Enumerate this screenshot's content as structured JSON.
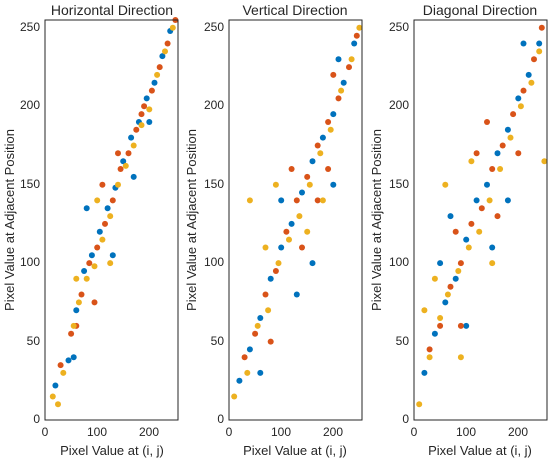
{
  "chart_data": [
    {
      "type": "scatter",
      "title": "Horizontal Direction",
      "xlabel": "Pixel Value at (i, j)",
      "ylabel": "Pixel Value at Adjacent Position",
      "xlim": [
        0,
        255
      ],
      "ylim": [
        0,
        255
      ],
      "xticks": [
        "0",
        "100",
        "200"
      ],
      "yticks": [
        "0",
        "50",
        "100",
        "150",
        "200",
        "250"
      ],
      "grid": false,
      "series_colors": [
        "#0072BD",
        "#D95319",
        "#EDB120"
      ],
      "series": [
        {
          "values": [
            [
              20,
              22
            ],
            [
              45,
              38
            ],
            [
              60,
              70
            ],
            [
              75,
              95
            ],
            [
              90,
              105
            ],
            [
              105,
              120
            ],
            [
              120,
              135
            ],
            [
              135,
              148
            ],
            [
              150,
              165
            ],
            [
              165,
              180
            ],
            [
              180,
              190
            ],
            [
              195,
              205
            ],
            [
              210,
              215
            ],
            [
              225,
              232
            ],
            [
              240,
              248
            ],
            [
              80,
              135
            ],
            [
              130,
              105
            ],
            [
              170,
              155
            ],
            [
              200,
              190
            ],
            [
              55,
              40
            ]
          ]
        },
        {
          "values": [
            [
              30,
              35
            ],
            [
              50,
              55
            ],
            [
              70,
              80
            ],
            [
              85,
              100
            ],
            [
              100,
              110
            ],
            [
              115,
              125
            ],
            [
              130,
              140
            ],
            [
              145,
              160
            ],
            [
              160,
              170
            ],
            [
              175,
              185
            ],
            [
              190,
              200
            ],
            [
              205,
              210
            ],
            [
              220,
              225
            ],
            [
              235,
              240
            ],
            [
              250,
              255
            ],
            [
              95,
              75
            ],
            [
              140,
              170
            ],
            [
              185,
              195
            ],
            [
              60,
              60
            ],
            [
              110,
              150
            ]
          ]
        },
        {
          "values": [
            [
              15,
              15
            ],
            [
              35,
              30
            ],
            [
              55,
              60
            ],
            [
              65,
              75
            ],
            [
              80,
              90
            ],
            [
              95,
              98
            ],
            [
              110,
              115
            ],
            [
              125,
              130
            ],
            [
              140,
              150
            ],
            [
              155,
              162
            ],
            [
              170,
              175
            ],
            [
              185,
              188
            ],
            [
              200,
              198
            ],
            [
              215,
              220
            ],
            [
              230,
              235
            ],
            [
              245,
              250
            ],
            [
              100,
              140
            ],
            [
              60,
              90
            ],
            [
              125,
              100
            ],
            [
              25,
              10
            ]
          ]
        }
      ]
    },
    {
      "type": "scatter",
      "title": "Vertical Direction",
      "xlabel": "Pixel Value at (i, j)",
      "ylabel": "Pixel Value at Adjacent Position",
      "xlim": [
        0,
        255
      ],
      "ylim": [
        0,
        255
      ],
      "xticks": [
        "0",
        "100",
        "200"
      ],
      "yticks": [
        "0",
        "50",
        "100",
        "150",
        "200",
        "250"
      ],
      "grid": false,
      "series_colors": [
        "#0072BD",
        "#D95319",
        "#EDB120"
      ],
      "series": [
        {
          "values": [
            [
              20,
              25
            ],
            [
              40,
              45
            ],
            [
              60,
              65
            ],
            [
              80,
              90
            ],
            [
              100,
              110
            ],
            [
              120,
              125
            ],
            [
              140,
              145
            ],
            [
              160,
              165
            ],
            [
              180,
              180
            ],
            [
              200,
              195
            ],
            [
              220,
              215
            ],
            [
              240,
              240
            ],
            [
              160,
              100
            ],
            [
              200,
              150
            ],
            [
              100,
              140
            ],
            [
              130,
              80
            ],
            [
              210,
              230
            ],
            [
              60,
              30
            ]
          ]
        },
        {
          "values": [
            [
              30,
              40
            ],
            [
              50,
              55
            ],
            [
              70,
              80
            ],
            [
              90,
              95
            ],
            [
              110,
              120
            ],
            [
              130,
              140
            ],
            [
              150,
              155
            ],
            [
              170,
              175
            ],
            [
              190,
              190
            ],
            [
              210,
              205
            ],
            [
              230,
              225
            ],
            [
              245,
              245
            ],
            [
              120,
              160
            ],
            [
              170,
              140
            ],
            [
              80,
              50
            ],
            [
              140,
              110
            ],
            [
              200,
              220
            ],
            [
              190,
              160
            ]
          ]
        },
        {
          "values": [
            [
              10,
              15
            ],
            [
              35,
              30
            ],
            [
              55,
              60
            ],
            [
              75,
              70
            ],
            [
              95,
              100
            ],
            [
              115,
              115
            ],
            [
              135,
              130
            ],
            [
              155,
              150
            ],
            [
              175,
              170
            ],
            [
              195,
              185
            ],
            [
              215,
              210
            ],
            [
              235,
              230
            ],
            [
              40,
              140
            ],
            [
              90,
              150
            ],
            [
              150,
              120
            ],
            [
              180,
              140
            ],
            [
              250,
              250
            ],
            [
              70,
              110
            ]
          ]
        }
      ]
    },
    {
      "type": "scatter",
      "title": "Diagonal Direction",
      "xlabel": "Pixel Value at (i, j)",
      "ylabel": "Pixel Value at Adjacent Position",
      "xlim": [
        0,
        255
      ],
      "ylim": [
        0,
        255
      ],
      "xticks": [
        "0",
        "100",
        "200"
      ],
      "yticks": [
        "0",
        "50",
        "100",
        "150",
        "200",
        "250"
      ],
      "grid": false,
      "series_colors": [
        "#0072BD",
        "#D95319",
        "#EDB120"
      ],
      "series": [
        {
          "values": [
            [
              20,
              30
            ],
            [
              40,
              55
            ],
            [
              60,
              75
            ],
            [
              80,
              90
            ],
            [
              100,
              115
            ],
            [
              120,
              140
            ],
            [
              140,
              150
            ],
            [
              160,
              170
            ],
            [
              180,
              185
            ],
            [
              200,
              205
            ],
            [
              220,
              220
            ],
            [
              240,
              240
            ],
            [
              100,
              60
            ],
            [
              150,
              110
            ],
            [
              70,
              130
            ],
            [
              180,
              140
            ],
            [
              210,
              240
            ],
            [
              50,
              100
            ]
          ]
        },
        {
          "values": [
            [
              30,
              45
            ],
            [
              50,
              60
            ],
            [
              70,
              85
            ],
            [
              90,
              100
            ],
            [
              110,
              125
            ],
            [
              130,
              135
            ],
            [
              150,
              160
            ],
            [
              170,
              175
            ],
            [
              190,
              195
            ],
            [
              210,
              210
            ],
            [
              230,
              230
            ],
            [
              245,
              250
            ],
            [
              120,
              170
            ],
            [
              160,
              130
            ],
            [
              90,
              60
            ],
            [
              200,
              170
            ],
            [
              140,
              190
            ],
            [
              80,
              120
            ]
          ]
        },
        {
          "values": [
            [
              10,
              10
            ],
            [
              30,
              40
            ],
            [
              50,
              65
            ],
            [
              65,
              80
            ],
            [
              85,
              95
            ],
            [
              105,
              110
            ],
            [
              125,
              120
            ],
            [
              145,
              140
            ],
            [
              165,
              160
            ],
            [
              185,
              180
            ],
            [
              205,
              200
            ],
            [
              225,
              215
            ],
            [
              240,
              235
            ],
            [
              40,
              90
            ],
            [
              60,
              150
            ],
            [
              110,
              165
            ],
            [
              150,
              100
            ],
            [
              250,
              165
            ],
            [
              20,
              70
            ],
            [
              90,
              40
            ]
          ]
        }
      ]
    }
  ]
}
